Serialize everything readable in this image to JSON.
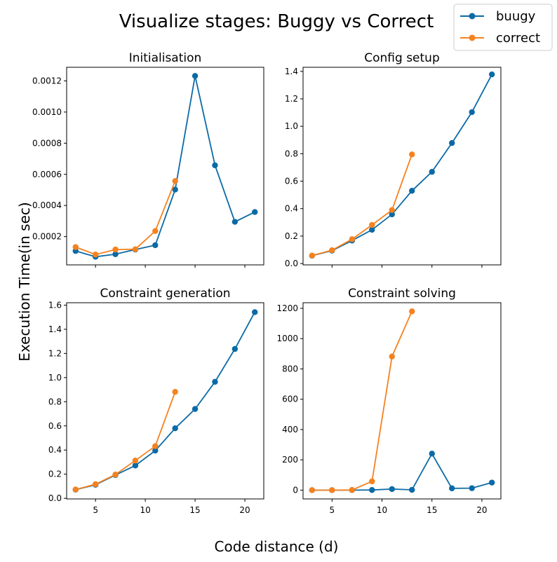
{
  "figure": {
    "title": "Visualize stages: Buggy vs Correct",
    "xlabel": "Code distance (d)",
    "ylabel": "Execution Time(in sec)",
    "legend_location": "upper-right"
  },
  "colors": {
    "buugy": "#0b6aa6",
    "correct": "#f5821f"
  },
  "chart_data": [
    {
      "type": "line",
      "title": "Initialisation",
      "xlim": [
        2.1,
        21.9
      ],
      "ylim": [
        1.85e-05,
        0.0012875
      ],
      "yticks": [
        "0.0002",
        "0.0004",
        "0.0006",
        "0.0008",
        "0.0010",
        "0.0012"
      ],
      "xticks": [
        "5",
        "10",
        "15",
        "20"
      ],
      "show_xticklabels": false,
      "series": [
        {
          "name": "buugy",
          "x": [
            3,
            5,
            7,
            9,
            11,
            13,
            15,
            17,
            19,
            21
          ],
          "values": [
            0.000108,
            7.05e-05,
            8.7e-05,
            0.000117,
            0.000145,
            0.000502,
            0.001232,
            0.000658,
            0.000295,
            0.000358
          ]
        },
        {
          "name": "correct",
          "x": [
            3,
            5,
            7,
            9,
            11,
            13
          ],
          "values": [
            0.000133,
            8.5e-05,
            0.000117,
            0.000119,
            0.000236,
            0.000557
          ]
        }
      ]
    },
    {
      "type": "line",
      "title": "Config setup",
      "xlim": [
        2.1,
        21.9
      ],
      "ylim": [
        -0.01,
        1.43
      ],
      "yticks": [
        "0.0",
        "0.2",
        "0.4",
        "0.6",
        "0.8",
        "1.0",
        "1.2",
        "1.4"
      ],
      "xticks": [
        "5",
        "10",
        "15",
        "20"
      ],
      "show_xticklabels": false,
      "series": [
        {
          "name": "buugy",
          "x": [
            3,
            5,
            7,
            9,
            11,
            13,
            15,
            17,
            19,
            21
          ],
          "values": [
            0.057,
            0.094,
            0.167,
            0.246,
            0.358,
            0.53,
            0.668,
            0.878,
            1.103,
            1.378
          ]
        },
        {
          "name": "correct",
          "x": [
            3,
            5,
            7,
            9,
            11,
            13
          ],
          "values": [
            0.058,
            0.097,
            0.177,
            0.281,
            0.39,
            0.795
          ]
        }
      ]
    },
    {
      "type": "line",
      "title": "Constraint generation",
      "xlim": [
        2.1,
        21.9
      ],
      "ylim": [
        -0.005,
        1.62
      ],
      "yticks": [
        "0.0",
        "0.2",
        "0.4",
        "0.6",
        "0.8",
        "1.0",
        "1.2",
        "1.4",
        "1.6"
      ],
      "xticks": [
        "5",
        "10",
        "15",
        "20"
      ],
      "show_xticklabels": true,
      "series": [
        {
          "name": "buugy",
          "x": [
            3,
            5,
            7,
            9,
            11,
            13,
            15,
            17,
            19,
            21
          ],
          "values": [
            0.072,
            0.112,
            0.193,
            0.272,
            0.395,
            0.58,
            0.74,
            0.965,
            1.237,
            1.542
          ]
        },
        {
          "name": "correct",
          "x": [
            3,
            5,
            7,
            9,
            11,
            13
          ],
          "values": [
            0.073,
            0.117,
            0.197,
            0.313,
            0.432,
            0.882
          ]
        }
      ]
    },
    {
      "type": "line",
      "title": "Constraint solving",
      "xlim": [
        2.1,
        21.9
      ],
      "ylim": [
        -58,
        1237
      ],
      "yticks": [
        "0",
        "200",
        "400",
        "600",
        "800",
        "1000",
        "1200"
      ],
      "xticks": [
        "5",
        "10",
        "15",
        "20"
      ],
      "show_xticklabels": true,
      "series": [
        {
          "name": "buugy",
          "x": [
            3,
            5,
            7,
            9,
            11,
            13,
            15,
            17,
            19,
            21
          ],
          "values": [
            0,
            0,
            0.5,
            1,
            7,
            2,
            241,
            12,
            13,
            50
          ]
        },
        {
          "name": "correct",
          "x": [
            3,
            5,
            7,
            9,
            11,
            13
          ],
          "values": [
            0,
            0,
            1,
            58,
            882,
            1180
          ]
        }
      ]
    }
  ]
}
